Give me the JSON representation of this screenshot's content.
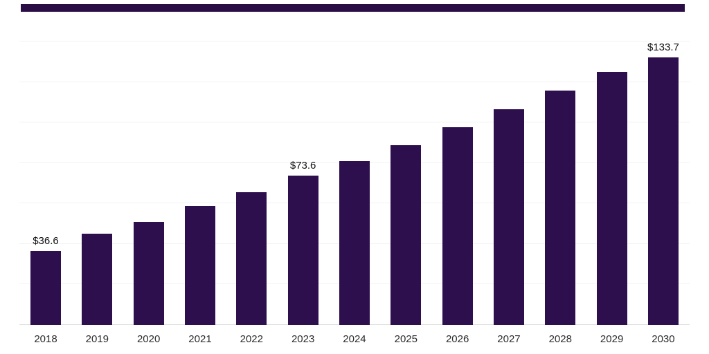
{
  "page": {
    "background_color": "#ffffff"
  },
  "top_bar": {
    "color": "#2a0d45"
  },
  "chart_data": {
    "type": "bar",
    "title": "",
    "xlabel": "",
    "ylabel": "",
    "categories": [
      "2018",
      "2019",
      "2020",
      "2021",
      "2022",
      "2023",
      "2024",
      "2025",
      "2026",
      "2027",
      "2028",
      "2029",
      "2030"
    ],
    "values": [
      36.6,
      45.2,
      50.8,
      58.6,
      65.4,
      73.6,
      81.1,
      88.9,
      97.8,
      106.6,
      115.8,
      125.0,
      133.7
    ],
    "value_labels": [
      "$36.6",
      null,
      null,
      null,
      null,
      "$73.6",
      null,
      null,
      null,
      null,
      null,
      null,
      "$133.7"
    ],
    "bar_color": "#2d0f4e",
    "ylim": [
      0,
      140
    ],
    "gridline_step": 20,
    "grid": true,
    "legend": "none",
    "grid_color": "#f2f1f4",
    "axis_line_color": "#dddde0"
  }
}
